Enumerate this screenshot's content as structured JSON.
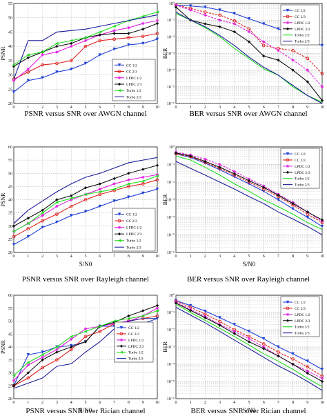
{
  "figure": {
    "colors": {
      "cc12": "#1f3fd6",
      "cc23": "#e02020",
      "ldpc12": "#e020e0",
      "ldpc23": "#111111",
      "turbo12": "#22dd22",
      "turbo23": "#1a1a99",
      "grid": "#8a8a8a"
    }
  },
  "chart_data": [
    {
      "id": "psnr-awgn",
      "type": "line",
      "caption": "PSNR versus SNR over AWGN channel",
      "xlabel": "",
      "ylabel": "PSNR",
      "xlim": [
        0,
        10
      ],
      "ylim": [
        20,
        55
      ],
      "yscale": "linear",
      "xticks": [
        "0",
        "1",
        "2",
        "3",
        "4",
        "5",
        "6",
        "7",
        "8",
        "9",
        "10"
      ],
      "yticks": [
        "20",
        "25",
        "30",
        "35",
        "40",
        "45",
        "50",
        "55"
      ],
      "grid": true,
      "legend": "right",
      "x": [
        0,
        1,
        2,
        3,
        4,
        5,
        6,
        7,
        8,
        9,
        10
      ],
      "series": [
        {
          "name": "CC 1/2",
          "color_key": "cc12",
          "marker": "triangle-down",
          "values": [
            24,
            28,
            29,
            31,
            32,
            34,
            37,
            39,
            40.5,
            41,
            42.5
          ]
        },
        {
          "name": "CC 2/3",
          "color_key": "cc23",
          "marker": "circle",
          "values": [
            28.5,
            31,
            33.5,
            34,
            35,
            40,
            42,
            42.5,
            43,
            43.5,
            44.5
          ]
        },
        {
          "name": "LPDC 1/2",
          "color_key": "ldpc12",
          "marker": "star",
          "values": [
            28,
            32,
            37,
            38,
            40,
            42,
            44,
            45.5,
            46.5,
            48,
            49
          ]
        },
        {
          "name": "LPDC 2/3",
          "color_key": "ldpc23",
          "marker": "diamond",
          "values": [
            33,
            36,
            38,
            40,
            41,
            43,
            44,
            44.5,
            44.5,
            46,
            48
          ]
        },
        {
          "name": "Turbo 1/2",
          "color_key": "turbo12",
          "marker": "triangle-left",
          "values": [
            33.5,
            37,
            38,
            41,
            42,
            43,
            45,
            47,
            49,
            50.5,
            52
          ]
        },
        {
          "name": "Turbo 2/3",
          "color_key": "turbo23",
          "marker": "none",
          "values": [
            28.5,
            42,
            42,
            45,
            45.5,
            46,
            47,
            48,
            49,
            50,
            51
          ]
        }
      ]
    },
    {
      "id": "ber-awgn",
      "type": "line",
      "caption": "BER versus SNR over AWGN channel",
      "xlabel": "",
      "ylabel": "BER",
      "xlim": [
        0,
        10
      ],
      "ylim": [
        1e-06,
        1
      ],
      "yscale": "log",
      "xticks": [
        "0",
        "1",
        "2",
        "3",
        "4",
        "5",
        "6",
        "7",
        "8",
        "9",
        "10"
      ],
      "yticks": [
        "10⁻⁶",
        "10⁻⁵",
        "10⁻⁴",
        "10⁻³",
        "10⁻²",
        "10⁻¹",
        "10⁰"
      ],
      "grid": true,
      "legend": "top-right",
      "x": [
        0,
        1,
        2,
        3,
        4,
        5,
        6,
        7,
        8,
        9,
        10
      ],
      "series": [
        {
          "name": "CC 1/2",
          "color_key": "cc12",
          "marker": "triangle-down",
          "values": [
            0.8,
            0.7,
            0.6,
            0.4,
            0.25,
            0.12,
            0.06,
            0.03,
            0.015,
            0.006,
            0.003
          ]
        },
        {
          "name": "CC 2/3",
          "color_key": "cc23",
          "marker": "circle",
          "values": [
            0.8,
            0.5,
            0.3,
            0.2,
            0.09,
            0.03,
            0.003,
            0.002,
            0.0015,
            0.0005,
            6e-05
          ]
        },
        {
          "name": "LPDC 1/2",
          "color_key": "ldpc12",
          "marker": "star",
          "values": [
            0.8,
            0.4,
            0.2,
            0.1,
            0.06,
            0.02,
            0.005,
            0.0015,
            0.0004,
            0.0001,
            1e-05
          ]
        },
        {
          "name": "LPDC 2/3",
          "color_key": "ldpc23",
          "marker": "diamond",
          "values": [
            0.6,
            0.1,
            0.06,
            0.04,
            0.02,
            0.005,
            0.0007,
            0.0004,
            0.0001,
            2e-05,
            1.5e-06
          ]
        },
        {
          "name": "Turbo 1/2",
          "color_key": "turbo12",
          "marker": "none",
          "values": [
            0.25,
            0.1,
            0.035,
            0.01,
            0.002,
            0.0005,
            0.00012,
            5e-05,
            1e-05,
            3e-06,
            1.2e-06
          ]
        },
        {
          "name": "Turbo 2/3",
          "color_key": "turbo23",
          "marker": "none",
          "values": [
            0.3,
            0.1,
            0.04,
            0.012,
            0.003,
            0.0006,
            0.00015,
            5e-05,
            1.2e-05,
            3e-06,
            1e-06
          ]
        }
      ]
    },
    {
      "id": "psnr-rayleigh",
      "type": "line",
      "caption": "PSNR versus SNR over Rayleigh channel",
      "xlabel": "S/N0",
      "ylabel": "PSNR",
      "xlim": [
        0,
        10
      ],
      "ylim": [
        20,
        60
      ],
      "yscale": "linear",
      "xticks": [
        "0",
        "1",
        "2",
        "3",
        "4",
        "5",
        "6",
        "7",
        "8",
        "9",
        "10"
      ],
      "yticks": [
        "20",
        "25",
        "30",
        "35",
        "40",
        "45",
        "50",
        "55",
        "60"
      ],
      "grid": true,
      "legend": "bottom-right",
      "x": [
        0,
        1,
        2,
        3,
        4,
        5,
        6,
        7,
        8,
        9,
        10
      ],
      "series": [
        {
          "name": "CC 1/2",
          "color_key": "cc12",
          "marker": "triangle-down",
          "values": [
            23,
            26,
            29.5,
            31.5,
            34,
            35.5,
            37.5,
            39.5,
            41,
            42.5,
            44
          ]
        },
        {
          "name": "CC 2/3",
          "color_key": "cc23",
          "marker": "circle",
          "values": [
            26,
            29,
            32,
            34.5,
            37.5,
            40,
            42,
            43.5,
            45,
            46,
            47.5
          ]
        },
        {
          "name": "LPDC 1/2",
          "color_key": "ldpc12",
          "marker": "star",
          "values": [
            28,
            31,
            34,
            37.5,
            40,
            42,
            44,
            46,
            47.5,
            48.5,
            49.5
          ]
        },
        {
          "name": "LPDC 2/3",
          "color_key": "ldpc23",
          "marker": "diamond",
          "values": [
            30,
            33,
            36,
            40,
            41.5,
            44.5,
            46,
            48,
            50,
            51.5,
            53
          ]
        },
        {
          "name": "Turbo 1/2",
          "color_key": "turbo12",
          "marker": "triangle-left",
          "values": [
            28,
            31,
            35,
            39,
            40.5,
            42,
            43,
            44,
            46,
            47,
            49
          ]
        },
        {
          "name": "Turbo 2/3",
          "color_key": "turbo23",
          "marker": "none",
          "values": [
            31,
            36,
            39.5,
            43,
            46,
            48.5,
            50,
            52,
            54,
            55,
            56
          ]
        }
      ]
    },
    {
      "id": "ber-rayleigh",
      "type": "line",
      "caption": "BER versus SNR over Rayleigh channel",
      "xlabel": "S/N0",
      "ylabel": "BER",
      "xlim": [
        0,
        10
      ],
      "ylim": [
        1e-06,
        1
      ],
      "yscale": "log",
      "xticks": [
        "0",
        "1",
        "2",
        "3",
        "4",
        "5",
        "6",
        "7",
        "8",
        "9",
        "10"
      ],
      "yticks": [
        "10⁻⁶",
        "10⁻⁵",
        "10⁻⁴",
        "10⁻³",
        "10⁻²",
        "10⁻¹",
        "10⁰"
      ],
      "grid": true,
      "legend": "top-right",
      "x": [
        0,
        1,
        2,
        3,
        4,
        5,
        6,
        7,
        8,
        9,
        10
      ],
      "series": [
        {
          "name": "CC 1/2",
          "color_key": "cc12",
          "marker": "triangle-down",
          "values": [
            0.4,
            0.25,
            0.12,
            0.05,
            0.02,
            0.008,
            0.003,
            0.001,
            0.0003,
            0.0001,
            3e-05
          ]
        },
        {
          "name": "CC 2/3",
          "color_key": "cc23",
          "marker": "circle",
          "values": [
            0.4,
            0.28,
            0.13,
            0.06,
            0.025,
            0.01,
            0.004,
            0.0015,
            0.0005,
            0.00015,
            5e-05
          ]
        },
        {
          "name": "LPDC 1/2",
          "color_key": "ldpc12",
          "marker": "star",
          "values": [
            0.5,
            0.35,
            0.2,
            0.1,
            0.04,
            0.015,
            0.006,
            0.002,
            0.0007,
            0.0002,
            6e-05
          ]
        },
        {
          "name": "LPDC 2/3",
          "color_key": "ldpc23",
          "marker": "diamond",
          "values": [
            0.45,
            0.3,
            0.15,
            0.07,
            0.03,
            0.012,
            0.005,
            0.0018,
            0.0006,
            0.0002,
            7e-05
          ]
        },
        {
          "name": "Turbo 1/2",
          "color_key": "turbo12",
          "marker": "none",
          "values": [
            0.3,
            0.18,
            0.07,
            0.025,
            0.008,
            0.003,
            0.001,
            0.0004,
            0.00015,
            5e-05,
            2e-05
          ]
        },
        {
          "name": "Turbo 2/3",
          "color_key": "turbo23",
          "marker": "none",
          "values": [
            0.15,
            0.06,
            0.025,
            0.01,
            0.004,
            0.0015,
            0.0006,
            0.0002,
            8e-05,
            3e-05,
            1e-05
          ]
        }
      ]
    },
    {
      "id": "psnr-rician",
      "type": "line",
      "caption": "PSNR versus SNR over Rician channel",
      "xlabel": "S/N0",
      "ylabel": "PSNR",
      "xlim": [
        0,
        10
      ],
      "ylim": [
        20,
        60
      ],
      "yscale": "linear",
      "xticks": [
        "0",
        "1",
        "2",
        "3",
        "4",
        "5",
        "6",
        "7",
        "8",
        "9",
        "10"
      ],
      "yticks": [
        "20",
        "25",
        "30",
        "35",
        "40",
        "45",
        "50",
        "55",
        "60"
      ],
      "grid": true,
      "legend": "right",
      "x": [
        0,
        1,
        2,
        3,
        4,
        5,
        6,
        7,
        8,
        9,
        10
      ],
      "series": [
        {
          "name": "CC 1/2",
          "color_key": "cc12",
          "marker": "triangle-down",
          "values": [
            25,
            37,
            38,
            40,
            40.5,
            42,
            48,
            48,
            48.5,
            49,
            51
          ]
        },
        {
          "name": "CC 2/3",
          "color_key": "cc23",
          "marker": "circle",
          "values": [
            25,
            28,
            32,
            35,
            39,
            44,
            46,
            49,
            50,
            51,
            52
          ]
        },
        {
          "name": "LPDC 1/2",
          "color_key": "ldpc12",
          "marker": "star",
          "values": [
            27,
            33,
            36,
            39,
            43,
            47,
            48,
            49,
            50,
            52,
            55
          ]
        },
        {
          "name": "LPDC 2/3",
          "color_key": "ldpc23",
          "marker": "diamond",
          "values": [
            25,
            30,
            35,
            38,
            40,
            42,
            48,
            49.5,
            52,
            54,
            56
          ]
        },
        {
          "name": "Turbo 1/2",
          "color_key": "turbo12",
          "marker": "triangle-left",
          "values": [
            29,
            34,
            37,
            40,
            44,
            46,
            48,
            50,
            51,
            52,
            54
          ]
        },
        {
          "name": "Turbo 2/3",
          "color_key": "turbo23",
          "marker": "none",
          "values": [
            24,
            26,
            28,
            32.5,
            33.5,
            38,
            42,
            47,
            50,
            51,
            51
          ]
        }
      ]
    },
    {
      "id": "ber-rician",
      "type": "line",
      "caption": "BER versus SNR over Rician channel",
      "xlabel": "S/N0",
      "ylabel": "BER",
      "xlim": [
        0,
        10
      ],
      "ylim": [
        1e-06,
        1
      ],
      "yscale": "log",
      "xticks": [
        "0",
        "1",
        "2",
        "3",
        "4",
        "5",
        "6",
        "7",
        "8",
        "9",
        "10"
      ],
      "yticks": [
        "10⁻⁶",
        "10⁻⁵",
        "10⁻⁴",
        "10⁻³",
        "10⁻²",
        "10⁻¹",
        "10⁰"
      ],
      "grid": true,
      "legend": "top-right",
      "x": [
        0,
        1,
        2,
        3,
        4,
        5,
        6,
        7,
        8,
        9,
        10
      ],
      "series": [
        {
          "name": "CC 1/2",
          "color_key": "cc12",
          "marker": "triangle-down",
          "values": [
            0.5,
            0.25,
            0.12,
            0.05,
            0.02,
            0.008,
            0.003,
            0.001,
            0.0004,
            0.00015,
            5e-05
          ]
        },
        {
          "name": "CC 2/3",
          "color_key": "cc23",
          "marker": "circle",
          "values": [
            0.45,
            0.2,
            0.08,
            0.03,
            0.01,
            0.004,
            0.0015,
            0.0005,
            0.0002,
            7e-05,
            2e-05
          ]
        },
        {
          "name": "LPDC 1/2",
          "color_key": "ldpc12",
          "marker": "star",
          "values": [
            0.4,
            0.15,
            0.06,
            0.02,
            0.008,
            0.003,
            0.001,
            0.0003,
            0.0001,
            4e-05,
            1.5e-05
          ]
        },
        {
          "name": "LPDC 2/3",
          "color_key": "ldpc23",
          "marker": "diamond",
          "values": [
            0.35,
            0.13,
            0.05,
            0.018,
            0.006,
            0.002,
            0.0008,
            0.0003,
            0.0001,
            3e-05,
            1e-05
          ]
        },
        {
          "name": "Turbo 1/2",
          "color_key": "turbo12",
          "marker": "none",
          "values": [
            0.3,
            0.1,
            0.035,
            0.012,
            0.004,
            0.0013,
            0.0004,
            0.00015,
            5e-05,
            1.5e-05,
            5e-06
          ]
        },
        {
          "name": "Turbo 2/3",
          "color_key": "turbo23",
          "marker": "none",
          "values": [
            0.2,
            0.07,
            0.025,
            0.008,
            0.0025,
            0.0008,
            0.00025,
            8e-05,
            3e-05,
            1e-05,
            3e-06
          ]
        }
      ]
    }
  ]
}
